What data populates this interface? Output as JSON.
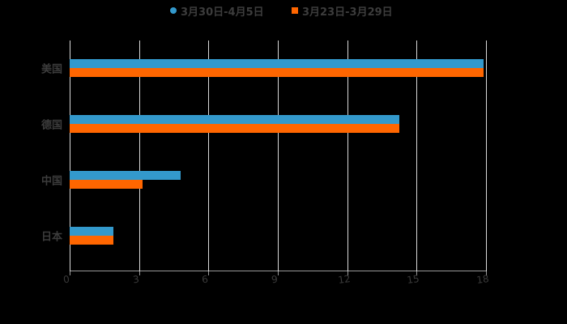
{
  "colors": {
    "series1": "#3399cc",
    "series2": "#ff6600",
    "background": "#000000",
    "grid": "#d9d9d9",
    "text": "#3c3c3c"
  },
  "legend": {
    "items": [
      {
        "label": "3月30日-4月5日",
        "marker": "circle",
        "color": "#3399cc"
      },
      {
        "label": "3月23日-3月29日",
        "marker": "square",
        "color": "#ff6600"
      }
    ]
  },
  "axis": {
    "x_ticks": [
      "0",
      "3",
      "6",
      "9",
      "12",
      "15",
      "18"
    ]
  },
  "categories_display": [
    "美国",
    "德国",
    "中国",
    "日本"
  ],
  "chart_data": {
    "type": "bar",
    "orientation": "horizontal",
    "title": "",
    "xlabel": "",
    "ylabel": "",
    "categories": [
      "美国",
      "德国",
      "中国",
      "日本"
    ],
    "series": [
      {
        "name": "3月30日-4月5日",
        "color": "#3399cc",
        "values": [
          17.9,
          14.25,
          4.8,
          1.9
        ]
      },
      {
        "name": "3月23日-3月29日",
        "color": "#ff6600",
        "values": [
          17.9,
          14.25,
          3.15,
          1.9
        ]
      }
    ],
    "xlim": [
      0,
      18
    ],
    "x_ticks": [
      0,
      3,
      6,
      9,
      12,
      15,
      18
    ],
    "grid": "vertical",
    "legend_position": "top"
  }
}
